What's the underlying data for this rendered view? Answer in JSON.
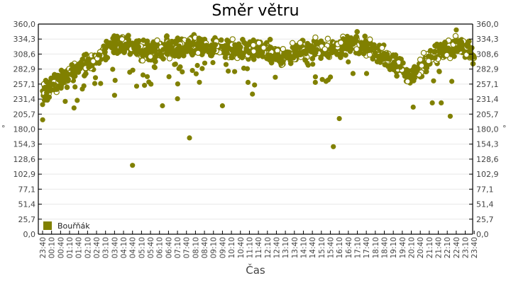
{
  "chart_data": {
    "type": "scatter",
    "title": "Směr větru",
    "xlabel": "Čas",
    "ylabel": "°",
    "ylabel_right": "°",
    "ylim": [
      0,
      360
    ],
    "yticks": [
      "0,0",
      "25,7",
      "51,4",
      "77,1",
      "102,9",
      "128,6",
      "154,3",
      "180,0",
      "205,7",
      "231,4",
      "257,1",
      "282,9",
      "308,6",
      "334,3",
      "360,0"
    ],
    "xticks": [
      "23:40",
      "00:10",
      "00:40",
      "01:10",
      "01:40",
      "02:10",
      "02:40",
      "03:10",
      "03:40",
      "04:10",
      "04:40",
      "05:10",
      "05:40",
      "06:10",
      "06:40",
      "07:10",
      "07:40",
      "08:10",
      "08:40",
      "09:10",
      "09:40",
      "10:10",
      "10:40",
      "11:10",
      "11:40",
      "12:10",
      "12:40",
      "13:10",
      "13:40",
      "14:10",
      "14:40",
      "15:10",
      "15:40",
      "16:10",
      "16:40",
      "17:10",
      "17:40",
      "18:10",
      "18:40",
      "19:10",
      "19:40",
      "20:10",
      "20:40",
      "21:10",
      "21:40",
      "22:10",
      "22:40",
      "23:10",
      "23:40"
    ],
    "grid": true,
    "legend_position": "lower-left-inside",
    "series": [
      {
        "name": "Bouřňák",
        "color": "#808000",
        "trend_hours": [
          0,
          0.5,
          1,
          1.5,
          2,
          2.5,
          3,
          3.5,
          4,
          4.5,
          5,
          5.5,
          6,
          6.5,
          7,
          7.5,
          8,
          8.5,
          9,
          9.5,
          10,
          10.5,
          11,
          11.5,
          12,
          12.5,
          13,
          13.5,
          14,
          14.5,
          15,
          15.5,
          16,
          16.5,
          17,
          17.5,
          18,
          18.5,
          19,
          19.5,
          20,
          20.5,
          21,
          21.5,
          22,
          22.5,
          23,
          23.5,
          24
        ],
        "trend_values": [
          245,
          250,
          262,
          275,
          285,
          292,
          300,
          312,
          322,
          326,
          320,
          316,
          312,
          315,
          318,
          320,
          322,
          322,
          322,
          320,
          318,
          315,
          312,
          315,
          318,
          316,
          305,
          300,
          310,
          318,
          320,
          318,
          316,
          320,
          325,
          328,
          322,
          315,
          305,
          295,
          285,
          270,
          285,
          300,
          312,
          318,
          322,
          315,
          305
        ],
        "outliers": [
          {
            "time": "23:40",
            "value": 222
          },
          {
            "time": "03:40",
            "value": 238
          },
          {
            "time": "04:40",
            "value": 118
          },
          {
            "time": "05:20",
            "value": 255
          },
          {
            "time": "06:20",
            "value": 220
          },
          {
            "time": "07:10",
            "value": 232
          },
          {
            "time": "07:50",
            "value": 165
          },
          {
            "time": "09:40",
            "value": 220
          },
          {
            "time": "11:20",
            "value": 240
          },
          {
            "time": "15:50",
            "value": 150
          },
          {
            "time": "16:10",
            "value": 198
          },
          {
            "time": "21:20",
            "value": 225
          },
          {
            "time": "21:50",
            "value": 225
          },
          {
            "time": "22:20",
            "value": 202
          },
          {
            "time": "22:40",
            "value": 350
          }
        ]
      }
    ]
  },
  "legend": {
    "items": [
      {
        "label": "Bouřňák",
        "color": "#808000"
      }
    ]
  },
  "style": {
    "grid_color": "#e8e8e8",
    "axis_color": "#000000",
    "label_color": "#444444"
  }
}
